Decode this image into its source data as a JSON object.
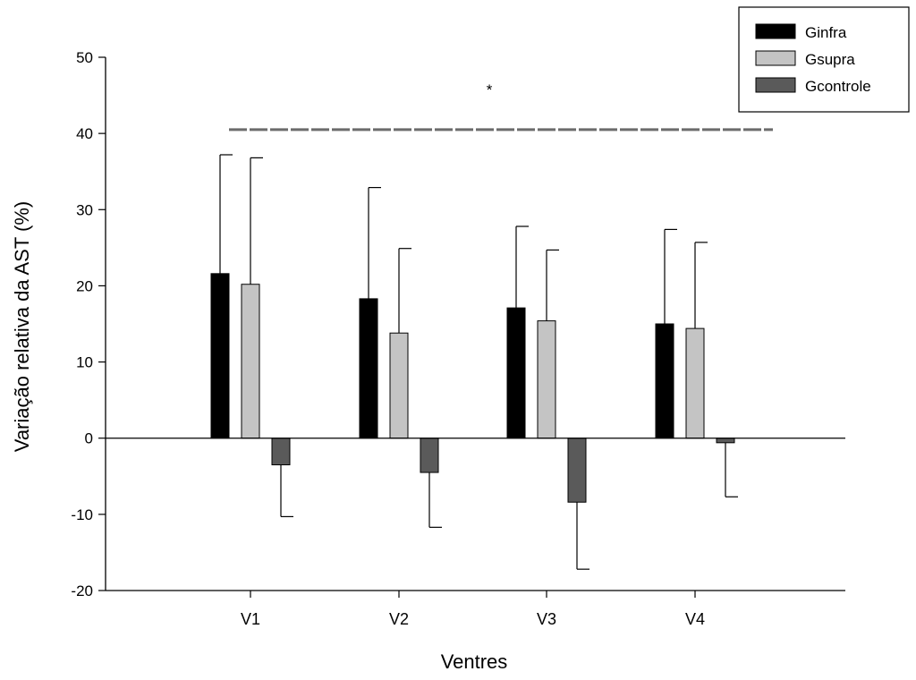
{
  "chart_data": {
    "type": "bar",
    "title": "",
    "xlabel": "Ventres",
    "ylabel": "Variação relativa da AST (%)",
    "ylim": [
      -20,
      50
    ],
    "yticks": [
      -20,
      -10,
      0,
      10,
      20,
      30,
      40,
      50
    ],
    "categories": [
      "V1",
      "V2",
      "V3",
      "V4"
    ],
    "series": [
      {
        "name": "Ginfra",
        "color": "#000000",
        "values": [
          21.6,
          18.3,
          17.1,
          15.0
        ],
        "errors": [
          15.6,
          14.6,
          10.7,
          12.4
        ]
      },
      {
        "name": "Gsupra",
        "color": "#c4c4c4",
        "values": [
          20.2,
          13.8,
          15.4,
          14.4
        ],
        "errors": [
          16.6,
          11.1,
          9.3,
          11.3
        ]
      },
      {
        "name": "Gcontrole",
        "color": "#5a5a5a",
        "values": [
          -3.5,
          -4.5,
          -8.4,
          -0.6
        ],
        "errors": [
          6.8,
          7.2,
          8.8,
          7.1
        ]
      }
    ],
    "legend_position": "top-right",
    "grid": false,
    "annotation": {
      "text": "*",
      "line_y": 40.5,
      "line_style": "dashed"
    }
  }
}
